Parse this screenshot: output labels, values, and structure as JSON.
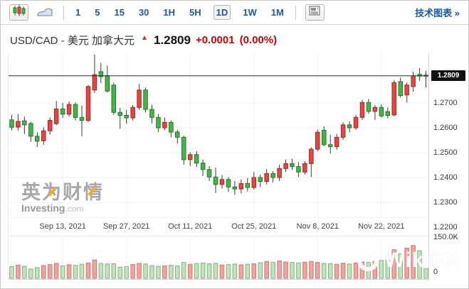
{
  "toolbar": {
    "chart_type": {
      "candlestick_selected": true,
      "line_selected": false
    },
    "timeframes": [
      "1",
      "5",
      "15",
      "30",
      "1H",
      "5H",
      "1D",
      "1W",
      "1M"
    ],
    "selected_timeframe": "1D",
    "technical_chart_link": "技术图表 »"
  },
  "header": {
    "symbol": "USD/CAD",
    "separator": "-",
    "name_cn": "美元 加拿大元",
    "arrow": "▲",
    "price": "1.2809",
    "change": "+0.0001",
    "change_pct": "(0.00%)"
  },
  "watermarks": {
    "investing_cn": "英为财情",
    "investing_en": "Investing",
    "investing_tld": ".com",
    "wikifx": "WikiFX"
  },
  "chart_data": {
    "type": "candlestick",
    "subpanes": [
      "price",
      "volume"
    ],
    "title": "USD/CAD Daily",
    "current_price": 1.2809,
    "current_price_label": "1.2809",
    "price_scale": {
      "top": 1.2897,
      "bottom": 1.224
    },
    "grid_prices": [
      1.28,
      1.27,
      1.26,
      1.25,
      1.24,
      1.23,
      1.22
    ],
    "y_ticks": [
      {
        "label": "1.2700",
        "value": 1.27
      },
      {
        "label": "1.2600",
        "value": 1.26
      },
      {
        "label": "1.2500",
        "value": 1.25
      },
      {
        "label": "1.2400",
        "value": 1.24
      },
      {
        "label": "1.2300",
        "value": 1.23
      },
      {
        "label": "1.2200",
        "value": 1.22
      }
    ],
    "x_labels": [
      {
        "label": "Sep 13, 2021",
        "index": 8
      },
      {
        "label": "Sep 27, 2021",
        "index": 18
      },
      {
        "label": "Oct 11, 2021",
        "index": 28
      },
      {
        "label": "Oct 25, 2021",
        "index": 38
      },
      {
        "label": "Nov 8, 2021",
        "index": 48
      },
      {
        "label": "Nov 22, 2021",
        "index": 58
      }
    ],
    "volume_axis": {
      "max": 150,
      "max_label": "150.0K",
      "min_label": "0"
    },
    "colors": {
      "up_fill": "#e84442",
      "up_stroke": "#9e2b25",
      "down_fill": "#47b44b",
      "down_stroke": "#1f7a21",
      "wick": "#3a3a3a",
      "vol_up_fill": "#eda59f",
      "vol_up_stroke": "#d9726c",
      "vol_down_fill": "#c3e2bd",
      "vol_down_stroke": "#7db378",
      "grid": "#f1f1f1",
      "current_price_line": "#2b2b2b"
    },
    "candle_columns": [
      "date",
      "open",
      "high",
      "low",
      "close",
      "volume_k"
    ],
    "candles": [
      [
        "Sep 1, 2021",
        1.2632,
        1.2652,
        1.259,
        1.2602,
        46
      ],
      [
        "Sep 2, 2021",
        1.2603,
        1.2655,
        1.2588,
        1.2626,
        52
      ],
      [
        "Sep 3, 2021",
        1.2628,
        1.2645,
        1.2575,
        1.2612,
        47
      ],
      [
        "Sep 6, 2021",
        1.2617,
        1.2624,
        1.2543,
        1.2566,
        36
      ],
      [
        "Sep 7, 2021",
        1.2566,
        1.2582,
        1.2523,
        1.2546,
        42
      ],
      [
        "Sep 8, 2021",
        1.2548,
        1.2602,
        1.2532,
        1.2588,
        50
      ],
      [
        "Sep 9, 2021",
        1.2588,
        1.2642,
        1.2572,
        1.263,
        54
      ],
      [
        "Sep 10, 2021",
        1.2617,
        1.2708,
        1.261,
        1.2676,
        58
      ],
      [
        "Sep 13, 2021",
        1.2676,
        1.27,
        1.264,
        1.2655,
        49
      ],
      [
        "Sep 14, 2021",
        1.2655,
        1.2706,
        1.2646,
        1.2694,
        53
      ],
      [
        "Sep 15, 2021",
        1.2694,
        1.2702,
        1.263,
        1.2642,
        51
      ],
      [
        "Sep 16, 2021",
        1.2642,
        1.269,
        1.2566,
        1.263,
        55
      ],
      [
        "Sep 17, 2021",
        1.263,
        1.2772,
        1.2622,
        1.2766,
        60
      ],
      [
        "Sep 20, 2021",
        1.2752,
        1.2895,
        1.274,
        1.2814,
        72
      ],
      [
        "Sep 21, 2021",
        1.2826,
        1.2862,
        1.278,
        1.2806,
        58
      ],
      [
        "Sep 22, 2021",
        1.281,
        1.285,
        1.2742,
        1.2748,
        56
      ],
      [
        "Sep 23, 2021",
        1.2772,
        1.2782,
        1.2652,
        1.2662,
        57
      ],
      [
        "Sep 24, 2021",
        1.2662,
        1.268,
        1.2596,
        1.265,
        44
      ],
      [
        "Sep 27, 2021",
        1.265,
        1.2672,
        1.2616,
        1.264,
        46
      ],
      [
        "Sep 28, 2021",
        1.264,
        1.2692,
        1.263,
        1.2682,
        54
      ],
      [
        "Sep 29, 2021",
        1.2682,
        1.2776,
        1.2672,
        1.2752,
        58
      ],
      [
        "Sep 30, 2021",
        1.2752,
        1.2762,
        1.2662,
        1.2674,
        56
      ],
      [
        "Oct 1, 2021",
        1.2674,
        1.2692,
        1.2618,
        1.2642,
        50
      ],
      [
        "Oct 4, 2021",
        1.2642,
        1.2656,
        1.2582,
        1.26,
        47
      ],
      [
        "Oct 5, 2021",
        1.26,
        1.2642,
        1.259,
        1.2622,
        49
      ],
      [
        "Oct 6, 2021",
        1.2622,
        1.263,
        1.2562,
        1.2583,
        51
      ],
      [
        "Oct 7, 2021",
        1.2583,
        1.2592,
        1.2536,
        1.2562,
        48
      ],
      [
        "Oct 8, 2021",
        1.2562,
        1.2568,
        1.2452,
        1.2472,
        62
      ],
      [
        "Oct 11, 2021",
        1.2472,
        1.2502,
        1.2446,
        1.2492,
        55
      ],
      [
        "Oct 12, 2021",
        1.2492,
        1.2506,
        1.2442,
        1.2458,
        58
      ],
      [
        "Oct 13, 2021",
        1.2458,
        1.2472,
        1.2406,
        1.2432,
        60
      ],
      [
        "Oct 14, 2021",
        1.2432,
        1.2446,
        1.2386,
        1.2402,
        57
      ],
      [
        "Oct 15, 2021",
        1.2402,
        1.244,
        1.2338,
        1.2372,
        59
      ],
      [
        "Oct 18, 2021",
        1.2372,
        1.241,
        1.2356,
        1.2392,
        52
      ],
      [
        "Oct 19, 2021",
        1.2392,
        1.2402,
        1.2342,
        1.2362,
        54
      ],
      [
        "Oct 20, 2021",
        1.2362,
        1.2386,
        1.233,
        1.2354,
        56
      ],
      [
        "Oct 21, 2021",
        1.2354,
        1.2392,
        1.2336,
        1.2376,
        53
      ],
      [
        "Oct 22, 2021",
        1.2376,
        1.2398,
        1.2344,
        1.236,
        55
      ],
      [
        "Oct 25, 2021",
        1.236,
        1.2422,
        1.2352,
        1.24,
        57
      ],
      [
        "Oct 26, 2021",
        1.24,
        1.2412,
        1.2362,
        1.2384,
        61
      ],
      [
        "Oct 27, 2021",
        1.2384,
        1.2434,
        1.2372,
        1.2416,
        66
      ],
      [
        "Oct 28, 2021",
        1.2416,
        1.2426,
        1.238,
        1.24,
        63
      ],
      [
        "Oct 29, 2021",
        1.24,
        1.2452,
        1.2386,
        1.2436,
        68
      ],
      [
        "Nov 1, 2021",
        1.2436,
        1.2472,
        1.2422,
        1.2456,
        64
      ],
      [
        "Nov 2, 2021",
        1.2456,
        1.2476,
        1.243,
        1.2444,
        62
      ],
      [
        "Nov 3, 2021",
        1.2444,
        1.2462,
        1.2402,
        1.2422,
        60
      ],
      [
        "Nov 4, 2021",
        1.2422,
        1.2466,
        1.2412,
        1.2456,
        63
      ],
      [
        "Nov 5, 2021",
        1.2456,
        1.2522,
        1.2402,
        1.2514,
        66
      ],
      [
        "Nov 8, 2021",
        1.2514,
        1.2592,
        1.2506,
        1.2582,
        62
      ],
      [
        "Nov 9, 2021",
        1.259,
        1.2606,
        1.2526,
        1.2532,
        58
      ],
      [
        "Nov 10, 2021",
        1.2532,
        1.2572,
        1.2496,
        1.2524,
        57
      ],
      [
        "Nov 11, 2021",
        1.2524,
        1.2576,
        1.2512,
        1.2562,
        55
      ],
      [
        "Nov 12, 2021",
        1.2562,
        1.2622,
        1.2552,
        1.2612,
        59
      ],
      [
        "Nov 15, 2021",
        1.2612,
        1.2626,
        1.2582,
        1.26,
        56
      ],
      [
        "Nov 16, 2021",
        1.26,
        1.2652,
        1.2592,
        1.2642,
        60
      ],
      [
        "Nov 17, 2021",
        1.2642,
        1.2712,
        1.2632,
        1.2702,
        64
      ],
      [
        "Nov 18, 2021",
        1.2702,
        1.2716,
        1.2656,
        1.2666,
        62
      ],
      [
        "Nov 19, 2021",
        1.2666,
        1.2692,
        1.2632,
        1.2682,
        66
      ],
      [
        "Nov 22, 2021",
        1.2682,
        1.2694,
        1.2642,
        1.2648,
        70
      ],
      [
        "Nov 23, 2021",
        1.2665,
        1.2682,
        1.2638,
        1.265,
        72
      ],
      [
        "Nov 24, 2021",
        1.2652,
        1.2792,
        1.2646,
        1.2782,
        112
      ],
      [
        "Nov 25, 2021",
        1.2786,
        1.2802,
        1.2722,
        1.273,
        96
      ],
      [
        "Nov 26, 2021",
        1.2732,
        1.2782,
        1.2702,
        1.2772,
        118
      ],
      [
        "Nov 29, 2021",
        1.2766,
        1.2826,
        1.2746,
        1.2808,
        128
      ],
      [
        "Nov 30, 2021",
        1.2815,
        1.284,
        1.279,
        1.2808,
        108
      ],
      [
        "Dec 1, 2021",
        1.2812,
        1.283,
        1.2762,
        1.2809,
        38
      ]
    ]
  }
}
